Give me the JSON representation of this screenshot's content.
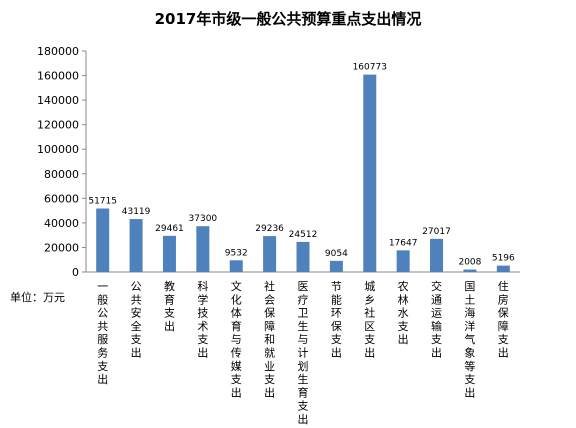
{
  "chart_data": {
    "type": "bar",
    "title": "2017年市级一般公共预算重点支出情况",
    "unit_label": "单位：万元",
    "categories": [
      "一般公共服务支出",
      "公共安全支出",
      "教育支出",
      "科学技术支出",
      "文化体育与传媒支出",
      "社会保障和就业支出",
      "医疗卫生与计划生育支出",
      "节能环保支出",
      "城乡社区支出",
      "农林水支出",
      "交通运输支出",
      "国土海洋气象等支出",
      "住房保障支出"
    ],
    "values": [
      51715,
      43119,
      29461,
      37300,
      9532,
      29236,
      24512,
      9054,
      160773,
      17647,
      27017,
      2008,
      5196
    ],
    "ylim": [
      0,
      180000
    ],
    "yticks": [
      0,
      20000,
      40000,
      60000,
      80000,
      100000,
      120000,
      140000,
      160000,
      180000
    ],
    "bar_color": "#4f81bd",
    "grid": false
  }
}
